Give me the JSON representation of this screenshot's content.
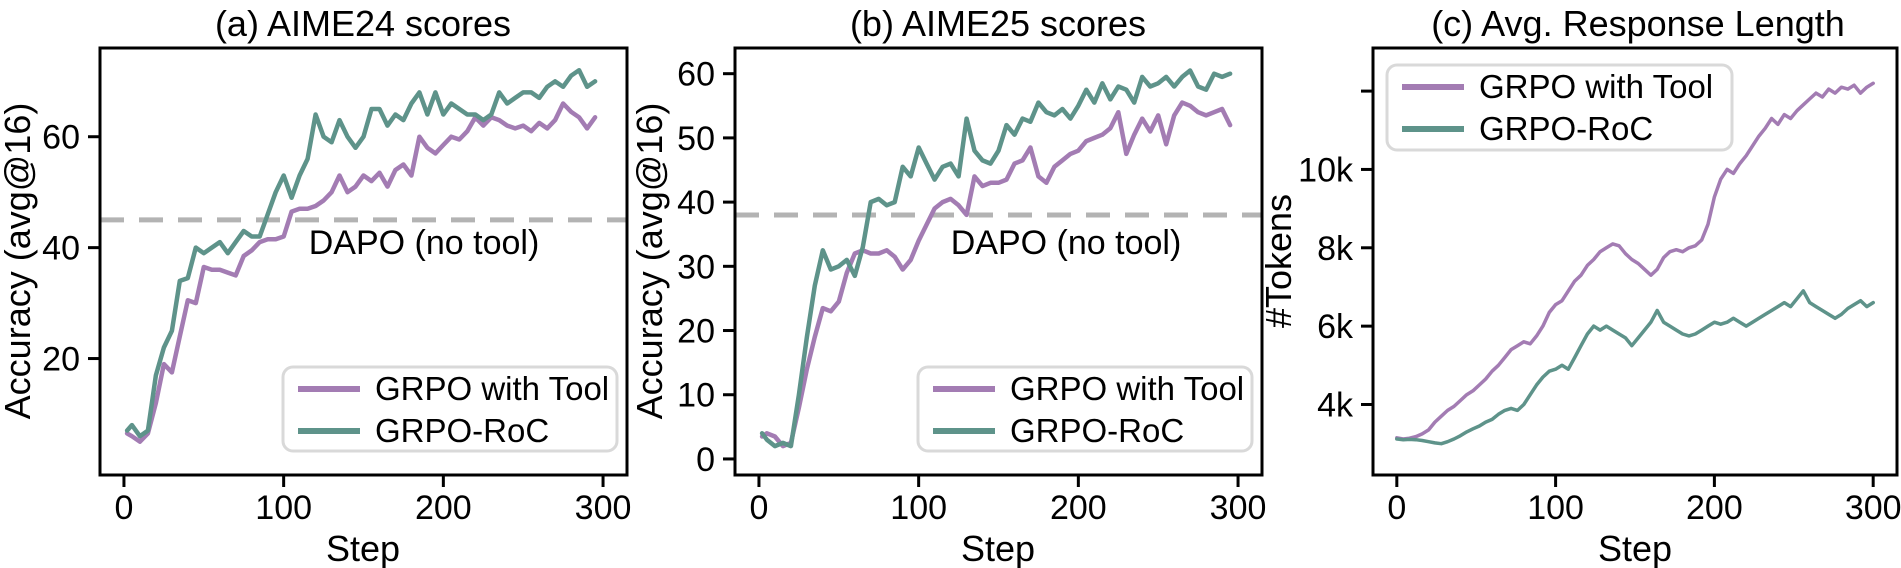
{
  "figure": {
    "background": "#ffffff"
  },
  "chart_data": {
    "type": "line",
    "panels": [
      {
        "id": "a",
        "title": "(a) AIME24 scores",
        "xlabel": "Step",
        "ylabel": "Accuracy (avg@16)",
        "xlim": [
          -15,
          315
        ],
        "ylim": [
          -1,
          76
        ],
        "grid": false,
        "xticks": [
          {
            "v": 0,
            "label": "0"
          },
          {
            "v": 100,
            "label": "100"
          },
          {
            "v": 200,
            "label": "200"
          },
          {
            "v": 300,
            "label": "300"
          }
        ],
        "yticks": [
          {
            "v": 20,
            "label": "20"
          },
          {
            "v": 40,
            "label": "40"
          },
          {
            "v": 60,
            "label": "60"
          }
        ],
        "refline": {
          "value": 45,
          "label": "DAPO (no tool)",
          "color": "#b3b3b3"
        },
        "legend": {
          "position": "lower right"
        },
        "series": [
          {
            "name": "GRPO with Tool",
            "color": "#a37cb3",
            "x": [
              2,
              5,
              10,
              15,
              20,
              25,
              30,
              35,
              40,
              45,
              50,
              55,
              60,
              65,
              70,
              75,
              80,
              85,
              90,
              95,
              100,
              105,
              110,
              115,
              120,
              125,
              130,
              135,
              140,
              145,
              150,
              155,
              160,
              165,
              170,
              175,
              180,
              185,
              190,
              195,
              200,
              205,
              210,
              215,
              220,
              225,
              230,
              235,
              240,
              245,
              250,
              255,
              260,
              265,
              270,
              275,
              280,
              285,
              290,
              295
            ],
            "y": [
              6.5,
              6,
              5,
              6.5,
              12,
              19,
              17.5,
              24,
              30.5,
              30,
              36.5,
              36,
              36,
              35.5,
              35,
              38.5,
              39.5,
              41,
              41.5,
              41.5,
              42,
              46.5,
              47,
              47,
              47.5,
              48.5,
              50,
              53,
              50,
              51,
              53,
              52,
              53.5,
              51,
              54,
              55,
              53,
              60,
              58,
              57,
              58.5,
              60,
              59.5,
              61,
              63.5,
              62,
              63.5,
              63,
              62,
              61.5,
              62,
              61,
              62.5,
              61.5,
              63,
              66,
              64.5,
              63.5,
              61.5,
              63.5
            ]
          },
          {
            "name": "GRPO-RoC",
            "color": "#5e938a",
            "x": [
              2,
              5,
              10,
              15,
              20,
              25,
              30,
              35,
              40,
              45,
              50,
              55,
              60,
              65,
              70,
              75,
              80,
              85,
              90,
              95,
              100,
              105,
              110,
              115,
              120,
              125,
              130,
              135,
              140,
              145,
              150,
              155,
              160,
              165,
              170,
              175,
              180,
              185,
              190,
              195,
              200,
              205,
              210,
              215,
              220,
              225,
              230,
              235,
              240,
              245,
              250,
              255,
              260,
              265,
              270,
              275,
              280,
              285,
              290,
              295
            ],
            "y": [
              7,
              8,
              6,
              7,
              17,
              22,
              25,
              34,
              34.5,
              40,
              39,
              40,
              41,
              39,
              41,
              43,
              42,
              42,
              46,
              50,
              53,
              49,
              53,
              56,
              64,
              60,
              59,
              63,
              60,
              58,
              60,
              65,
              65,
              62,
              64,
              63,
              66,
              68,
              64,
              68,
              64,
              66,
              65,
              64,
              64,
              63,
              64,
              68,
              66,
              67,
              68,
              68,
              67,
              69,
              70,
              69,
              71,
              72,
              69,
              70
            ]
          }
        ]
      },
      {
        "id": "b",
        "title": "(b) AIME25 scores",
        "xlabel": "Step",
        "ylabel": "Accuracy (avg@16)",
        "xlim": [
          -15,
          315
        ],
        "ylim": [
          -2.5,
          64
        ],
        "grid": false,
        "xticks": [
          {
            "v": 0,
            "label": "0"
          },
          {
            "v": 100,
            "label": "100"
          },
          {
            "v": 200,
            "label": "200"
          },
          {
            "v": 300,
            "label": "300"
          }
        ],
        "yticks": [
          {
            "v": 0,
            "label": "0"
          },
          {
            "v": 10,
            "label": "10"
          },
          {
            "v": 20,
            "label": "20"
          },
          {
            "v": 30,
            "label": "30"
          },
          {
            "v": 40,
            "label": "40"
          },
          {
            "v": 50,
            "label": "50"
          },
          {
            "v": 60,
            "label": "60"
          }
        ],
        "refline": {
          "value": 38,
          "label": "DAPO (no tool)",
          "color": "#b3b3b3"
        },
        "legend": {
          "position": "lower right"
        },
        "series": [
          {
            "name": "GRPO with Tool",
            "color": "#a37cb3",
            "x": [
              2,
              5,
              10,
              15,
              20,
              25,
              30,
              35,
              40,
              45,
              50,
              55,
              60,
              65,
              70,
              75,
              80,
              85,
              90,
              95,
              100,
              105,
              110,
              115,
              120,
              125,
              130,
              135,
              140,
              145,
              150,
              155,
              160,
              165,
              170,
              175,
              180,
              185,
              190,
              195,
              200,
              205,
              210,
              215,
              220,
              225,
              230,
              235,
              240,
              245,
              250,
              255,
              260,
              265,
              270,
              275,
              280,
              285,
              290,
              295
            ],
            "y": [
              3.5,
              4,
              3.5,
              2,
              2.5,
              8,
              14,
              19,
              23.5,
              23,
              24.5,
              29,
              32,
              32.5,
              32,
              32,
              32.5,
              31.5,
              29.5,
              31,
              34,
              36.5,
              39,
              40,
              40.5,
              39.5,
              38,
              44,
              42.5,
              43,
              43,
              43.5,
              46,
              46.5,
              48.5,
              44,
              43,
              45.5,
              46.5,
              47.5,
              48,
              49.5,
              50,
              50.5,
              51.5,
              54,
              47.5,
              50.5,
              53,
              51,
              53.5,
              49,
              53.5,
              55.5,
              55,
              54,
              53.5,
              54,
              54.5,
              52
            ]
          },
          {
            "name": "GRPO-RoC",
            "color": "#5e938a",
            "x": [
              2,
              5,
              10,
              15,
              20,
              25,
              30,
              35,
              40,
              45,
              50,
              55,
              60,
              65,
              70,
              75,
              80,
              85,
              90,
              95,
              100,
              105,
              110,
              115,
              120,
              125,
              130,
              135,
              140,
              145,
              150,
              155,
              160,
              165,
              170,
              175,
              180,
              185,
              190,
              195,
              200,
              205,
              210,
              215,
              220,
              225,
              230,
              235,
              240,
              245,
              250,
              255,
              260,
              265,
              270,
              275,
              280,
              285,
              290,
              295
            ],
            "y": [
              4,
              3,
              2,
              2.5,
              2,
              10,
              19,
              27,
              32.5,
              29.5,
              30,
              31,
              28.5,
              33,
              40,
              40.5,
              39.5,
              40,
              45.5,
              44,
              48.5,
              46,
              43.5,
              45.5,
              46,
              44,
              53,
              48,
              46.5,
              46,
              48,
              52,
              50.5,
              53,
              52.5,
              55.5,
              54,
              53.5,
              54.5,
              53,
              55,
              57.5,
              55.5,
              58.5,
              56,
              58,
              57.5,
              55.5,
              59.5,
              58,
              58.5,
              59.5,
              58,
              59.5,
              60.5,
              58,
              57.5,
              60,
              59.5,
              60
            ]
          }
        ]
      },
      {
        "id": "c",
        "title": "(c) Avg. Response Length",
        "xlabel": "Step",
        "ylabel": "#Tokens",
        "xlim": [
          -15,
          315
        ],
        "ylim": [
          2200,
          13100
        ],
        "grid": false,
        "xticks": [
          {
            "v": 0,
            "label": "0"
          },
          {
            "v": 100,
            "label": "100"
          },
          {
            "v": 200,
            "label": "200"
          },
          {
            "v": 300,
            "label": "300"
          }
        ],
        "yticks": [
          {
            "v": 4000,
            "label": "4k"
          },
          {
            "v": 6000,
            "label": "6k"
          },
          {
            "v": 8000,
            "label": "8k"
          },
          {
            "v": 10000,
            "label": "10k"
          },
          {
            "v": 12000,
            "label": ""
          }
        ],
        "legend": {
          "position": "upper left"
        },
        "series": [
          {
            "name": "GRPO with Tool",
            "color": "#a37cb3",
            "x": [
              0,
              4,
              8,
              12,
              16,
              20,
              24,
              28,
              32,
              36,
              40,
              44,
              48,
              52,
              56,
              60,
              64,
              68,
              72,
              76,
              80,
              84,
              88,
              92,
              96,
              100,
              104,
              108,
              112,
              116,
              120,
              124,
              128,
              132,
              136,
              140,
              144,
              148,
              152,
              156,
              160,
              164,
              168,
              172,
              176,
              180,
              184,
              188,
              192,
              196,
              200,
              204,
              208,
              212,
              216,
              220,
              224,
              228,
              232,
              236,
              240,
              244,
              248,
              252,
              256,
              260,
              264,
              268,
              272,
              276,
              280,
              284,
              288,
              292,
              296,
              300
            ],
            "y": [
              3150,
              3120,
              3140,
              3180,
              3250,
              3350,
              3550,
              3700,
              3850,
              3950,
              4100,
              4250,
              4350,
              4500,
              4650,
              4850,
              5000,
              5200,
              5400,
              5500,
              5600,
              5550,
              5750,
              6000,
              6350,
              6550,
              6650,
              6900,
              7150,
              7300,
              7550,
              7700,
              7900,
              8000,
              8100,
              8050,
              7850,
              7700,
              7600,
              7450,
              7300,
              7450,
              7750,
              7900,
              7950,
              7900,
              8000,
              8050,
              8200,
              8600,
              9300,
              9750,
              10000,
              9900,
              10150,
              10350,
              10600,
              10850,
              11050,
              11300,
              11150,
              11400,
              11300,
              11500,
              11650,
              11800,
              11950,
              11850,
              12050,
              11950,
              12100,
              12050,
              12150,
              11950,
              12100,
              12200
            ]
          },
          {
            "name": "GRPO-RoC",
            "color": "#5e938a",
            "x": [
              0,
              4,
              8,
              12,
              16,
              20,
              24,
              28,
              32,
              36,
              40,
              44,
              48,
              52,
              56,
              60,
              64,
              68,
              72,
              76,
              80,
              84,
              88,
              92,
              96,
              100,
              104,
              108,
              112,
              116,
              120,
              124,
              128,
              132,
              136,
              140,
              144,
              148,
              152,
              156,
              160,
              164,
              168,
              172,
              176,
              180,
              184,
              188,
              192,
              196,
              200,
              204,
              208,
              212,
              216,
              220,
              224,
              228,
              232,
              236,
              240,
              244,
              248,
              252,
              256,
              260,
              264,
              268,
              272,
              276,
              280,
              284,
              288,
              292,
              296,
              300
            ],
            "y": [
              3120,
              3100,
              3110,
              3100,
              3080,
              3050,
              3020,
              3000,
              3050,
              3120,
              3200,
              3300,
              3380,
              3450,
              3550,
              3620,
              3750,
              3850,
              3900,
              3850,
              4000,
              4250,
              4500,
              4700,
              4850,
              4900,
              5000,
              4900,
              5200,
              5500,
              5800,
              6000,
              5900,
              6000,
              5900,
              5800,
              5700,
              5500,
              5700,
              5900,
              6100,
              6400,
              6100,
              6000,
              5900,
              5800,
              5750,
              5800,
              5900,
              6000,
              6100,
              6050,
              6100,
              6200,
              6100,
              6000,
              6100,
              6200,
              6300,
              6400,
              6500,
              6600,
              6500,
              6700,
              6900,
              6600,
              6500,
              6400,
              6300,
              6200,
              6300,
              6450,
              6550,
              6650,
              6500,
              6600
            ]
          }
        ]
      }
    ]
  }
}
